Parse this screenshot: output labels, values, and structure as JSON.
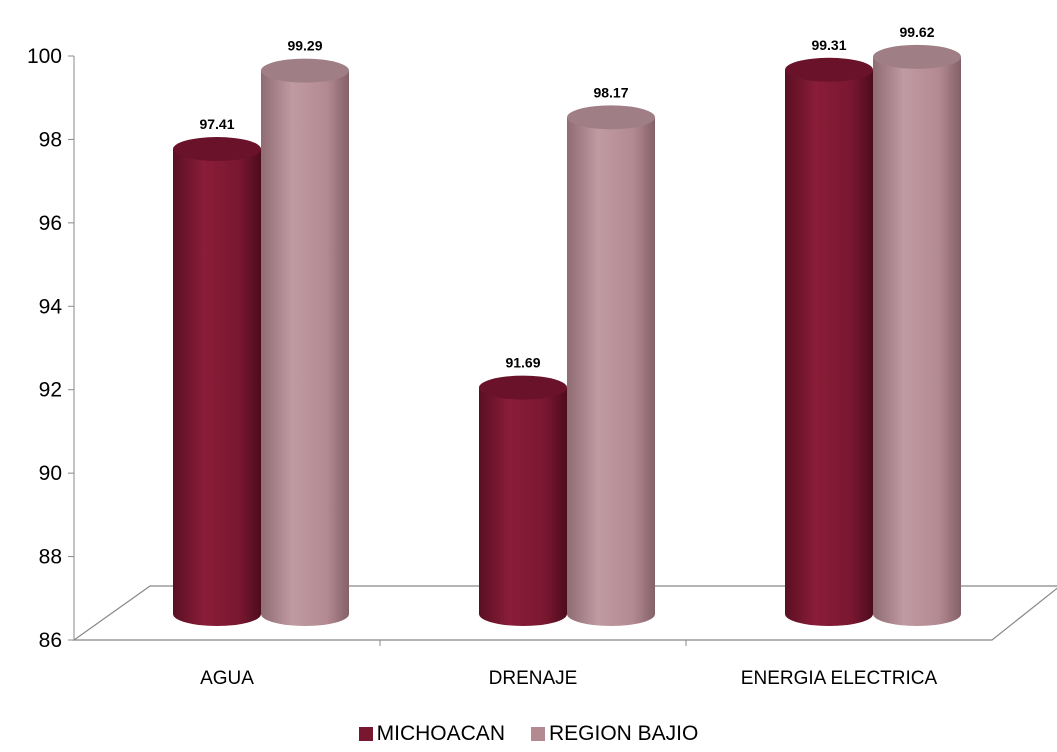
{
  "chart_data": {
    "type": "bar",
    "categories": [
      "AGUA",
      "DRENAJE",
      "ENERGIA ELECTRICA"
    ],
    "series": [
      {
        "name": "MICHOACAN",
        "values": [
          97.41,
          91.69,
          99.31
        ],
        "labels": [
          "97.41",
          "91.69",
          "99.31"
        ],
        "color": "#7a1730"
      },
      {
        "name": "REGION BAJIO",
        "values": [
          99.29,
          98.17,
          99.62
        ],
        "labels": [
          "99.29",
          "98.17",
          "99.62"
        ],
        "color": "#b38a92"
      }
    ],
    "ylim": [
      86,
      100
    ],
    "yticks": [
      "86",
      "88",
      "90",
      "92",
      "94",
      "96",
      "98",
      "100"
    ],
    "legend_position": "bottom",
    "grid": false,
    "style": "3d-cylinder"
  }
}
